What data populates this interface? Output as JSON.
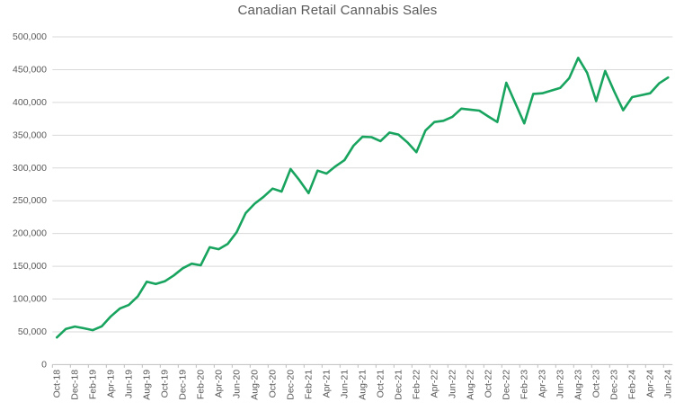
{
  "chart_data": {
    "type": "line",
    "title": "Canadian Retail Cannabis Sales",
    "xlabel": "",
    "ylabel": "",
    "ylim": [
      0,
      500000
    ],
    "y_tick_step": 50000,
    "x_tick_interval": 2,
    "grid": true,
    "legend": false,
    "line_color": "#18a45e",
    "grid_color": "#d9d9d9",
    "axis_color": "#bfbfbf",
    "text_color": "#595959",
    "categories": [
      "Oct-18",
      "Nov-18",
      "Dec-18",
      "Jan-19",
      "Feb-19",
      "Mar-19",
      "Apr-19",
      "May-19",
      "Jun-19",
      "Jul-19",
      "Aug-19",
      "Sep-19",
      "Oct-19",
      "Nov-19",
      "Dec-19",
      "Jan-20",
      "Feb-20",
      "Mar-20",
      "Apr-20",
      "May-20",
      "Jun-20",
      "Jul-20",
      "Aug-20",
      "Sep-20",
      "Oct-20",
      "Nov-20",
      "Dec-20",
      "Jan-21",
      "Feb-21",
      "Mar-21",
      "Apr-21",
      "May-21",
      "Jun-21",
      "Jul-21",
      "Aug-21",
      "Sep-21",
      "Oct-21",
      "Nov-21",
      "Dec-21",
      "Jan-22",
      "Feb-22",
      "Mar-22",
      "Apr-22",
      "May-22",
      "Jun-22",
      "Jul-22",
      "Aug-22",
      "Sep-22",
      "Oct-22",
      "Nov-22",
      "Dec-22",
      "Jan-23",
      "Feb-23",
      "Mar-23",
      "Apr-23",
      "May-23",
      "Jun-23",
      "Jul-23",
      "Aug-23",
      "Sep-23",
      "Oct-23",
      "Nov-23",
      "Dec-23",
      "Jan-24",
      "Feb-24",
      "Mar-24",
      "Apr-24",
      "May-24",
      "Jun-24"
    ],
    "values": [
      41500,
      54500,
      58000,
      55500,
      52500,
      58500,
      73500,
      85500,
      91000,
      104000,
      126500,
      123000,
      127000,
      136000,
      147000,
      154000,
      151500,
      179000,
      176000,
      184000,
      202000,
      231000,
      245500,
      256000,
      268500,
      264000,
      298500,
      281000,
      261500,
      296000,
      291500,
      302500,
      312000,
      334000,
      347500,
      347000,
      341000,
      354000,
      351000,
      339000,
      324000,
      357000,
      370000,
      372000,
      378000,
      390500,
      389000,
      387500,
      378500,
      370000,
      430000,
      399000,
      368000,
      413000,
      414000,
      418000,
      422000,
      437000,
      468000,
      445000,
      402000,
      448000,
      417000,
      388000,
      408000,
      411000,
      414000,
      429000,
      438000
    ]
  }
}
